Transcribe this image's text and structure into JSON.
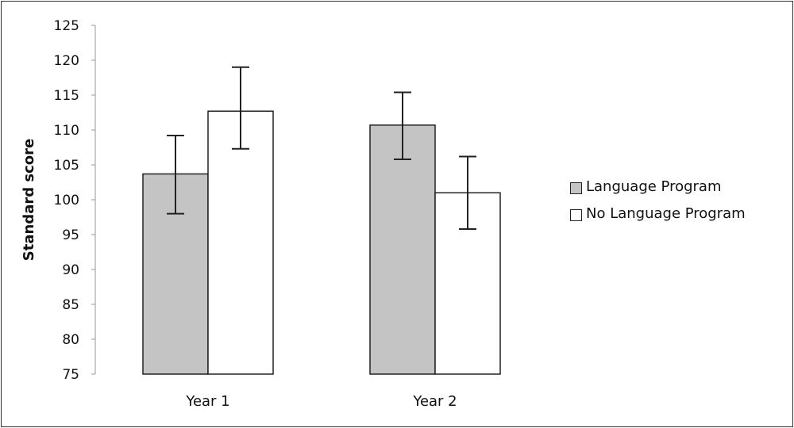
{
  "chart_data": {
    "type": "bar",
    "title": "",
    "xlabel": "",
    "ylabel": "Standard score",
    "ylim": [
      75,
      125
    ],
    "yticks": [
      75,
      80,
      85,
      90,
      95,
      100,
      105,
      110,
      115,
      120,
      125
    ],
    "grid": false,
    "legend_position": "right",
    "categories": [
      "Year 1",
      "Year 2"
    ],
    "series": [
      {
        "name": "Language Program",
        "color": "#c4c4c4",
        "values": [
          103.7,
          110.7
        ],
        "error_low": [
          98.0,
          105.8
        ],
        "error_high": [
          109.2,
          115.4
        ]
      },
      {
        "name": "No Language Program",
        "color": "#ffffff",
        "values": [
          112.7,
          101.0
        ],
        "error_low": [
          107.3,
          95.8
        ],
        "error_high": [
          119.0,
          106.2
        ]
      }
    ]
  }
}
